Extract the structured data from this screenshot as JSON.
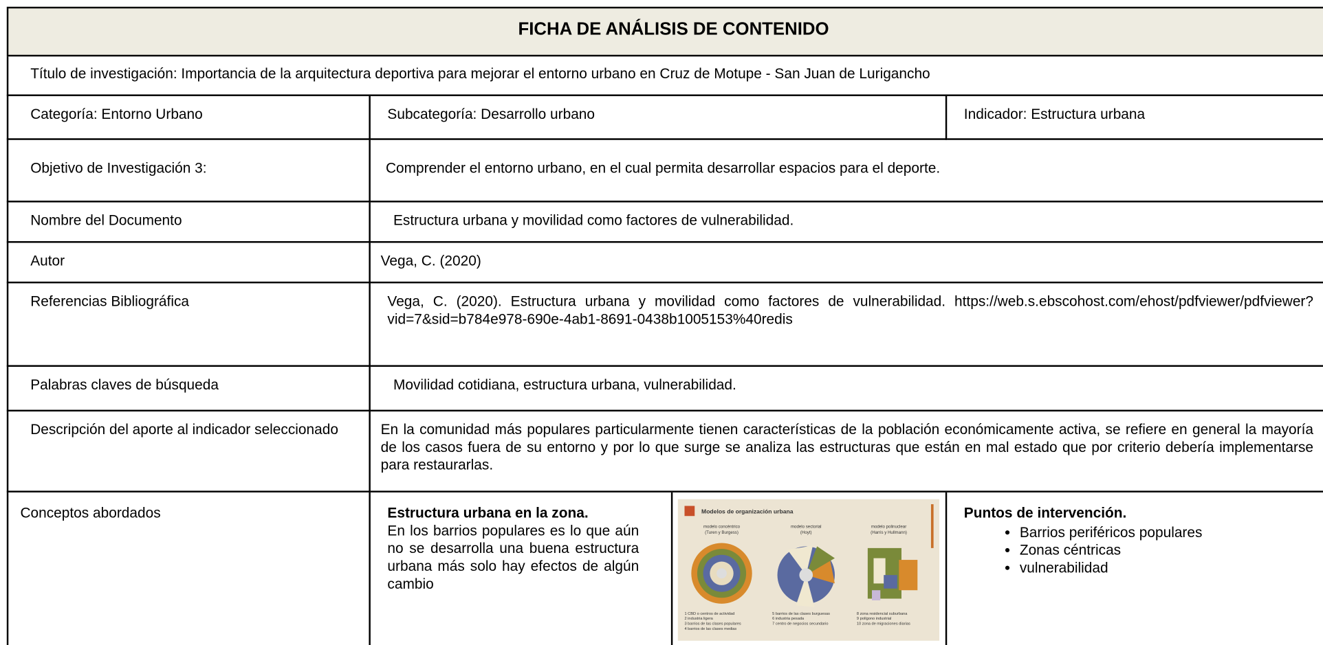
{
  "header": {
    "title": "FICHA DE ANÁLISIS DE CONTENIDO"
  },
  "research_title": "Título de investigación: Importancia de la arquitectura deportiva para mejorar el entorno urbano en Cruz de Motupe - San Juan de Lurigancho",
  "category": "Categoría: Entorno Urbano",
  "subcategory": "Subcategoría:  Desarrollo urbano",
  "indicator": "Indicador: Estructura urbana",
  "rows": [
    [
      "Objetivo de Investigación 3:",
      "Comprender el entorno urbano, en el cual permita desarrollar espacios para el deporte."
    ],
    [
      "Nombre del Documento",
      "Estructura urbana y movilidad como factores de vulnerabilidad."
    ],
    [
      "Autor",
      "Vega, C. (2020)"
    ],
    [
      "Referencias Bibliográfica",
      "Vega, C. (2020). Estructura urbana y movilidad como factores de vulnerabilidad. https://web.s.ebscohost.com/ehost/pdfviewer/pdfviewer?vid=7&sid=b784e978-690e-4ab1-8691-0438b1005153%40redis"
    ],
    [
      "Palabras claves de búsqueda",
      "Movilidad cotidiana, estructura urbana, vulnerabilidad."
    ],
    [
      "Descripción del aporte al indicador seleccionado",
      "En la comunidad más populares particularmente tienen características de la población económicamente activa, se refiere en general la mayoría de los casos fuera de su entorno y por lo que surge se analiza las estructuras que están en mal estado que por criterio debería implementarse para restaurarlas."
    ]
  ],
  "concepts": {
    "label": "Conceptos abordados",
    "structure": {
      "heading": "Estructura urbana en la zona.",
      "text": "En los barrios populares es lo que aún no se desarrolla una buena estructura urbana más solo hay efectos de algún cambio"
    },
    "figure": {
      "title": "Modelos de organización urbana",
      "models": [
        [
          "modelo concéntrico",
          "(Turen y Burgess)"
        ],
        [
          "modelo sectorial",
          "(Hoyt)"
        ],
        [
          "modelo polinuclear",
          "(Harris y Hullmann)"
        ]
      ],
      "legend": [
        [
          "1 CBD o centros de actividad",
          "2 industria ligera",
          "3 barrios de las clases populares",
          "4 barrios de las clases medias"
        ],
        [
          "5 barrios de las clases burguesas",
          "6 industria pesada",
          "7 centro de negocios secundario"
        ],
        [
          "8 zona residencial suburbana",
          "9 polígono industrial",
          "10 zona de migraciones diarias"
        ]
      ]
    },
    "intervention": {
      "heading": "Puntos de intervención.",
      "items": [
        "Barrios periféricos populares",
        "Zonas céntricas",
        "vulnerabilidad"
      ]
    }
  }
}
